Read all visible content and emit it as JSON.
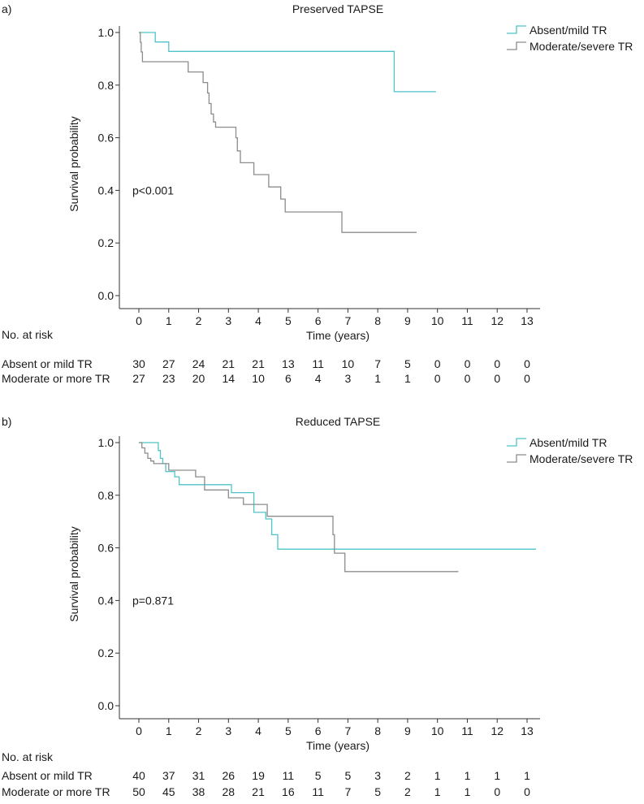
{
  "chart_data": [
    {
      "type": "line",
      "subtype": "kaplan-meier",
      "panel_label": "a)",
      "title": "Preserved TAPSE",
      "xlabel": "Time (years)",
      "ylabel": "Survival probability",
      "xlim": [
        0,
        13
      ],
      "ylim": [
        0,
        1
      ],
      "x_ticks": [
        "0",
        "1",
        "2",
        "3",
        "4",
        "5",
        "6",
        "7",
        "8",
        "9",
        "10",
        "11",
        "12",
        "13"
      ],
      "y_ticks": [
        "0.0",
        "0.2",
        "0.4",
        "0.6",
        "0.8",
        "1.0"
      ],
      "annotation": "p<0.001",
      "legend_position": "top-right",
      "series": [
        {
          "name": "Absent/mild TR",
          "color": "#4fc3c8",
          "x": [
            0,
            0.55,
            0.55,
            1.0,
            1.0,
            8.55,
            8.55,
            9.95
          ],
          "y": [
            1.0,
            1.0,
            0.964,
            0.964,
            0.928,
            0.928,
            0.775,
            0.775
          ]
        },
        {
          "name": "Moderate/severe TR",
          "color": "#8c8c8c",
          "x": [
            0,
            0.05,
            0.05,
            0.08,
            0.08,
            0.12,
            0.12,
            0.15,
            0.15,
            0.2,
            0.2,
            1.65,
            1.65,
            2.15,
            2.15,
            2.3,
            2.3,
            2.35,
            2.35,
            2.42,
            2.42,
            2.5,
            2.5,
            2.57,
            2.57,
            3.25,
            3.25,
            3.3,
            3.3,
            3.4,
            3.4,
            3.85,
            3.85,
            4.35,
            4.35,
            4.75,
            4.75,
            4.9,
            4.9,
            6.8,
            6.8,
            9.3
          ],
          "y": [
            1.0,
            1.0,
            0.963,
            0.963,
            0.926,
            0.926,
            0.889,
            0.889,
            0.889,
            0.889,
            0.889,
            0.889,
            0.85,
            0.85,
            0.81,
            0.81,
            0.77,
            0.77,
            0.73,
            0.73,
            0.69,
            0.69,
            0.66,
            0.66,
            0.64,
            0.64,
            0.6,
            0.6,
            0.55,
            0.55,
            0.505,
            0.505,
            0.46,
            0.46,
            0.413,
            0.413,
            0.367,
            0.367,
            0.318,
            0.318,
            0.24,
            0.24
          ]
        }
      ],
      "risk_table": {
        "heading": "No. at risk",
        "rows": [
          {
            "label": "Absent or mild TR",
            "values": [
              "30",
              "27",
              "24",
              "21",
              "21",
              "13",
              "11",
              "10",
              "7",
              "5",
              "0",
              "0",
              "0",
              "0"
            ]
          },
          {
            "label": "Moderate or more TR",
            "values": [
              "27",
              "23",
              "20",
              "14",
              "10",
              "6",
              "4",
              "3",
              "1",
              "1",
              "0",
              "0",
              "0",
              "0"
            ]
          }
        ]
      }
    },
    {
      "type": "line",
      "subtype": "kaplan-meier",
      "panel_label": "b)",
      "title": "Reduced TAPSE",
      "xlabel": "Time (years)",
      "ylabel": "Survival probability",
      "xlim": [
        0,
        13
      ],
      "ylim": [
        0,
        1
      ],
      "x_ticks": [
        "0",
        "1",
        "2",
        "3",
        "4",
        "5",
        "6",
        "7",
        "8",
        "9",
        "10",
        "11",
        "12",
        "13"
      ],
      "y_ticks": [
        "0.0",
        "0.2",
        "0.4",
        "0.6",
        "0.8",
        "1.0"
      ],
      "annotation": "p=0.871",
      "legend_position": "top-right",
      "series": [
        {
          "name": "Absent/mild TR",
          "color": "#4fc3c8",
          "x": [
            0,
            0.65,
            0.65,
            0.72,
            0.72,
            0.8,
            0.8,
            0.9,
            0.9,
            1.2,
            1.2,
            1.35,
            1.35,
            1.45,
            1.45,
            3.1,
            3.1,
            3.85,
            3.85,
            4.25,
            4.25,
            4.45,
            4.45,
            4.65,
            4.65,
            13.3
          ],
          "y": [
            1.0,
            1.0,
            0.97,
            0.97,
            0.94,
            0.94,
            0.92,
            0.92,
            0.89,
            0.89,
            0.87,
            0.87,
            0.84,
            0.84,
            0.84,
            0.84,
            0.81,
            0.81,
            0.735,
            0.735,
            0.71,
            0.71,
            0.65,
            0.65,
            0.595,
            0.595
          ]
        },
        {
          "name": "Moderate/severe TR",
          "color": "#8c8c8c",
          "x": [
            0,
            0.1,
            0.1,
            0.2,
            0.2,
            0.3,
            0.3,
            0.4,
            0.4,
            0.5,
            0.5,
            1.0,
            1.0,
            1.9,
            1.9,
            2.2,
            2.2,
            3.0,
            3.0,
            3.5,
            3.5,
            4.3,
            4.3,
            6.5,
            6.5,
            6.55,
            6.55,
            6.9,
            6.9,
            10.7
          ],
          "y": [
            1.0,
            1.0,
            0.98,
            0.98,
            0.96,
            0.96,
            0.94,
            0.94,
            0.93,
            0.93,
            0.92,
            0.92,
            0.895,
            0.895,
            0.87,
            0.87,
            0.82,
            0.82,
            0.79,
            0.79,
            0.765,
            0.765,
            0.72,
            0.72,
            0.65,
            0.65,
            0.58,
            0.58,
            0.51,
            0.51
          ]
        }
      ],
      "risk_table": {
        "heading": "No. at risk",
        "rows": [
          {
            "label": "Absent or mild TR",
            "values": [
              "40",
              "37",
              "31",
              "26",
              "19",
              "11",
              "5",
              "5",
              "3",
              "2",
              "1",
              "1",
              "1",
              "1"
            ]
          },
          {
            "label": "Moderate or more TR",
            "values": [
              "50",
              "45",
              "38",
              "28",
              "21",
              "16",
              "11",
              "7",
              "5",
              "2",
              "1",
              "1",
              "0",
              "0"
            ]
          }
        ]
      }
    }
  ]
}
